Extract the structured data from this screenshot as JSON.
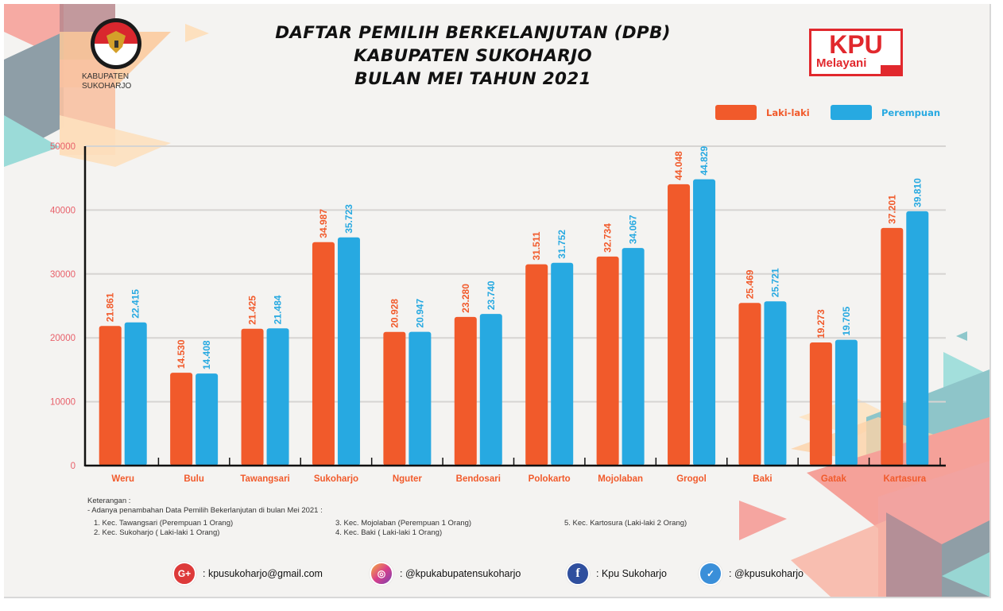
{
  "header": {
    "title_lines": [
      "DAFTAR PEMILIH BERKELANJUTAN (DPB)",
      "KABUPATEN SUKOHARJO",
      "BULAN MEI TAHUN 2021"
    ],
    "org_lines": [
      "KABUPATEN",
      "SUKOHARJO"
    ],
    "kpu_logo": {
      "line1": "KPU",
      "line2": "Melayani"
    }
  },
  "chart_data": {
    "type": "bar",
    "title": "DAFTAR PEMILIH BERKELANJUTAN (DPB) KABUPATEN SUKOHARJO BULAN MEI TAHUN 2021",
    "xlabel": "",
    "ylabel": "",
    "ylim": [
      0,
      50000
    ],
    "yticks": [
      0,
      10000,
      20000,
      30000,
      40000,
      50000
    ],
    "ytick_labels": [
      "0",
      "10000",
      "20000",
      "30000",
      "40000",
      "50000"
    ],
    "grid": true,
    "legend_position": "top-right",
    "categories": [
      "Weru",
      "Bulu",
      "Tawangsari",
      "Sukoharjo",
      "Nguter",
      "Bendosari",
      "Polokarto",
      "Mojolaban",
      "Grogol",
      "Baki",
      "Gatak",
      "Kartasura"
    ],
    "series": [
      {
        "name": "Laki-laki",
        "color": "#f15a2b",
        "values": [
          21861,
          14530,
          21425,
          34987,
          20928,
          23280,
          31511,
          32734,
          44048,
          25469,
          19273,
          37201
        ],
        "labels": [
          "21.861",
          "14.530",
          "21.425",
          "34.987",
          "20.928",
          "23.280",
          "31.511",
          "32.734",
          "44.048",
          "25.469",
          "19.273",
          "37.201"
        ]
      },
      {
        "name": "Perempuan",
        "color": "#27a9e1",
        "values": [
          22415,
          14408,
          21484,
          35723,
          20947,
          23740,
          31752,
          34067,
          44829,
          25721,
          19705,
          39810
        ],
        "labels": [
          "22.415",
          "14.408",
          "21.484",
          "35.723",
          "20.947",
          "23.740",
          "31.752",
          "34.067",
          "44.829",
          "25.721",
          "19.705",
          "39.810"
        ]
      }
    ]
  },
  "notes": {
    "heading": "Keterangan :",
    "intro": "- Adanya penambahan Data Pemilih Bekerlanjutan di bulan Mei 2021 :",
    "items": [
      "1. Kec. Tawangsari (Perempuan 1 Orang)",
      "2. Kec. Sukoharjo ( Laki-laki 1 Orang)",
      "3. Kec. Mojolaban (Perempuan 1 Orang)",
      "4. Kec. Baki ( Laki-laki 1 Orang)",
      "5. Kec. Kartosura (Laki-laki 2 Orang)"
    ]
  },
  "social": [
    {
      "icon": "google-plus-icon",
      "glyph": "G+",
      "color": "#dd3a3a",
      "text": ": kpusukoharjo@gmail.com"
    },
    {
      "icon": "instagram-icon",
      "glyph": "◎",
      "color": "#d9408a",
      "text": ": @kpukabupatensukoharjo"
    },
    {
      "icon": "facebook-icon",
      "glyph": "f",
      "color": "#2f4f9e",
      "text": ": Kpu Sukoharjo"
    },
    {
      "icon": "twitter-icon",
      "glyph": "✓",
      "color": "#3a8fd9",
      "text": ": @kpusukoharjo"
    }
  ],
  "colors": {
    "axis_label": "#f15a2b",
    "ytick": "#e8606a",
    "male": "#f15a2b",
    "female": "#27a9e1"
  }
}
